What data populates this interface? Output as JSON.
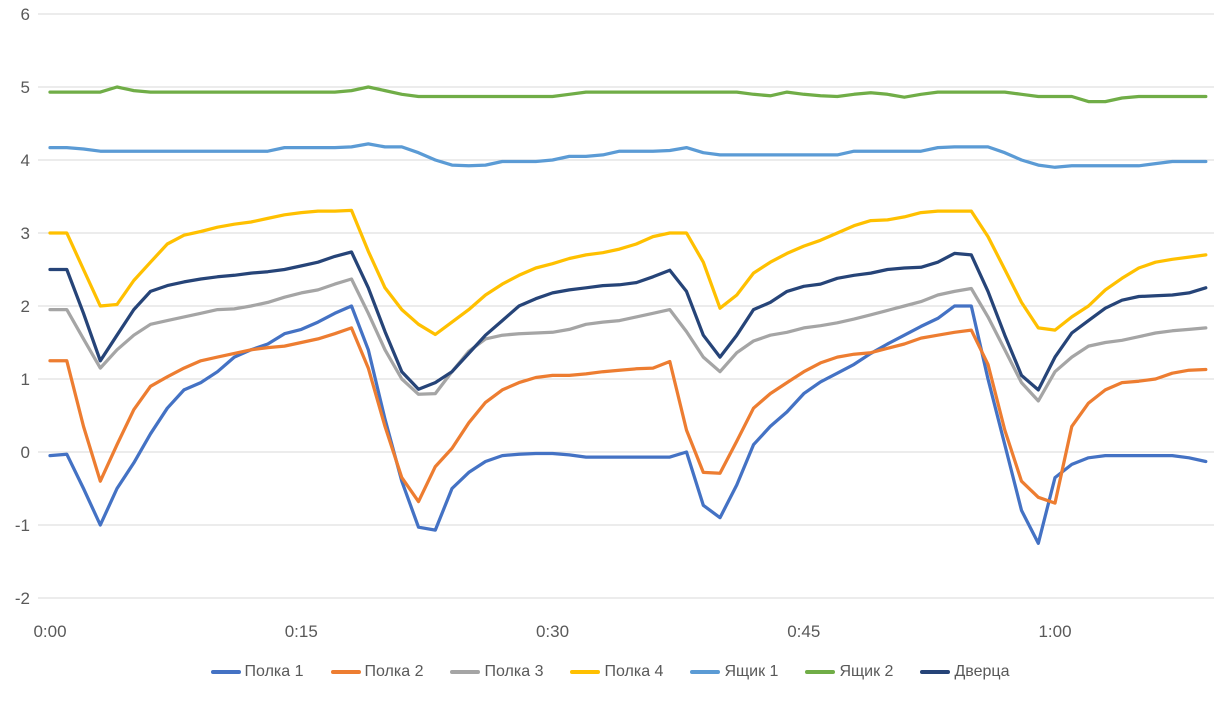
{
  "styles": {
    "background": "#FFFFFF",
    "gridline_color": "#D9D9D9",
    "axis_label_color": "#595959",
    "legend_label_color": "#595959"
  },
  "chart_data": {
    "type": "line",
    "title": "",
    "xlabel": "",
    "ylabel": "",
    "grid": true,
    "legend_position": "bottom",
    "x_axis": {
      "unit": "time_minutes",
      "start_min": 0,
      "end_min": 69,
      "sample_interval_min": 1,
      "ticks": [
        {
          "pos_min": 0,
          "label": "0:00"
        },
        {
          "pos_min": 15,
          "label": "0:15"
        },
        {
          "pos_min": 30,
          "label": "0:30"
        },
        {
          "pos_min": 45,
          "label": "0:45"
        },
        {
          "pos_min": 60,
          "label": "1:00"
        }
      ]
    },
    "y_axis": {
      "min": -2,
      "max": 6,
      "step": 1,
      "tick_labels": [
        "6",
        "5",
        "4",
        "3",
        "2",
        "1",
        "0",
        "-1",
        "-2"
      ]
    },
    "series": [
      {
        "name": "Полка 1",
        "key": "polka-1",
        "color": "#4472C4",
        "values": [
          -0.05,
          -0.03,
          -0.5,
          -1.0,
          -0.5,
          -0.15,
          0.25,
          0.6,
          0.85,
          0.95,
          1.1,
          1.3,
          1.4,
          1.48,
          1.62,
          1.68,
          1.78,
          1.9,
          2.0,
          1.4,
          0.45,
          -0.4,
          -1.03,
          -1.07,
          -0.5,
          -0.28,
          -0.13,
          -0.05,
          -0.03,
          -0.02,
          -0.02,
          -0.04,
          -0.07,
          -0.07,
          -0.07,
          -0.07,
          -0.07,
          -0.07,
          0.0,
          -0.73,
          -0.9,
          -0.45,
          0.1,
          0.35,
          0.55,
          0.8,
          0.96,
          1.08,
          1.2,
          1.35,
          1.48,
          1.6,
          1.72,
          1.83,
          2.0,
          2.0,
          1.0,
          0.1,
          -0.8,
          -1.25,
          -0.35,
          -0.17,
          -0.08,
          -0.05,
          -0.05,
          -0.05,
          -0.05,
          -0.05,
          -0.08,
          -0.13
        ]
      },
      {
        "name": "Полка 2",
        "key": "polka-2",
        "color": "#ED7D31",
        "values": [
          1.25,
          1.25,
          0.35,
          -0.4,
          0.1,
          0.58,
          0.9,
          1.03,
          1.15,
          1.25,
          1.3,
          1.35,
          1.4,
          1.43,
          1.45,
          1.5,
          1.55,
          1.62,
          1.7,
          1.15,
          0.35,
          -0.35,
          -0.68,
          -0.2,
          0.05,
          0.4,
          0.68,
          0.85,
          0.95,
          1.02,
          1.05,
          1.05,
          1.07,
          1.1,
          1.12,
          1.14,
          1.15,
          1.24,
          0.3,
          -0.28,
          -0.29,
          0.15,
          0.6,
          0.8,
          0.95,
          1.1,
          1.22,
          1.3,
          1.34,
          1.36,
          1.42,
          1.48,
          1.56,
          1.6,
          1.64,
          1.67,
          1.2,
          0.3,
          -0.4,
          -0.62,
          -0.7,
          0.35,
          0.67,
          0.85,
          0.95,
          0.97,
          1.0,
          1.08,
          1.12,
          1.13
        ]
      },
      {
        "name": "Полка 3",
        "key": "polka-3",
        "color": "#A5A5A5",
        "values": [
          1.95,
          1.95,
          1.55,
          1.15,
          1.4,
          1.6,
          1.75,
          1.8,
          1.85,
          1.9,
          1.95,
          1.96,
          2.0,
          2.05,
          2.12,
          2.18,
          2.22,
          2.3,
          2.37,
          1.9,
          1.4,
          1.0,
          0.79,
          0.8,
          1.1,
          1.38,
          1.55,
          1.6,
          1.62,
          1.63,
          1.64,
          1.68,
          1.75,
          1.78,
          1.8,
          1.85,
          1.9,
          1.95,
          1.65,
          1.3,
          1.1,
          1.36,
          1.52,
          1.6,
          1.64,
          1.7,
          1.73,
          1.77,
          1.82,
          1.88,
          1.94,
          2.0,
          2.06,
          2.15,
          2.2,
          2.24,
          1.85,
          1.4,
          0.95,
          0.7,
          1.1,
          1.3,
          1.45,
          1.5,
          1.53,
          1.58,
          1.63,
          1.66,
          1.68,
          1.7
        ]
      },
      {
        "name": "Полка 4",
        "key": "polka-4",
        "color": "#FFC000",
        "values": [
          3.0,
          3.0,
          2.5,
          2.0,
          2.02,
          2.35,
          2.6,
          2.85,
          2.97,
          3.02,
          3.08,
          3.12,
          3.15,
          3.2,
          3.25,
          3.28,
          3.3,
          3.3,
          3.31,
          2.75,
          2.25,
          1.95,
          1.75,
          1.61,
          1.78,
          1.95,
          2.15,
          2.3,
          2.42,
          2.52,
          2.58,
          2.65,
          2.7,
          2.73,
          2.78,
          2.85,
          2.95,
          3.0,
          3.0,
          2.6,
          1.97,
          2.15,
          2.45,
          2.6,
          2.72,
          2.82,
          2.9,
          3.0,
          3.1,
          3.17,
          3.18,
          3.22,
          3.28,
          3.3,
          3.3,
          3.3,
          2.95,
          2.5,
          2.05,
          1.7,
          1.67,
          1.85,
          2.0,
          2.22,
          2.38,
          2.52,
          2.6,
          2.64,
          2.67,
          2.7
        ]
      },
      {
        "name": "Ящик 1",
        "key": "yashchik-1",
        "color": "#5B9BD5",
        "values": [
          4.17,
          4.17,
          4.15,
          4.12,
          4.12,
          4.12,
          4.12,
          4.12,
          4.12,
          4.12,
          4.12,
          4.12,
          4.12,
          4.12,
          4.17,
          4.17,
          4.17,
          4.17,
          4.18,
          4.22,
          4.18,
          4.18,
          4.1,
          4.0,
          3.93,
          3.92,
          3.93,
          3.98,
          3.98,
          3.98,
          4.0,
          4.05,
          4.05,
          4.07,
          4.12,
          4.12,
          4.12,
          4.13,
          4.17,
          4.1,
          4.07,
          4.07,
          4.07,
          4.07,
          4.07,
          4.07,
          4.07,
          4.07,
          4.12,
          4.12,
          4.12,
          4.12,
          4.12,
          4.17,
          4.18,
          4.18,
          4.18,
          4.1,
          4.0,
          3.93,
          3.9,
          3.92,
          3.92,
          3.92,
          3.92,
          3.92,
          3.95,
          3.98,
          3.98,
          3.98
        ]
      },
      {
        "name": "Ящик 2",
        "key": "yashchik-2",
        "color": "#70AD47",
        "values": [
          4.93,
          4.93,
          4.93,
          4.93,
          5.0,
          4.95,
          4.93,
          4.93,
          4.93,
          4.93,
          4.93,
          4.93,
          4.93,
          4.93,
          4.93,
          4.93,
          4.93,
          4.93,
          4.95,
          5.0,
          4.95,
          4.9,
          4.87,
          4.87,
          4.87,
          4.87,
          4.87,
          4.87,
          4.87,
          4.87,
          4.87,
          4.9,
          4.93,
          4.93,
          4.93,
          4.93,
          4.93,
          4.93,
          4.93,
          4.93,
          4.93,
          4.93,
          4.9,
          4.88,
          4.93,
          4.9,
          4.88,
          4.87,
          4.9,
          4.92,
          4.9,
          4.86,
          4.9,
          4.93,
          4.93,
          4.93,
          4.93,
          4.93,
          4.9,
          4.87,
          4.87,
          4.87,
          4.8,
          4.8,
          4.85,
          4.87,
          4.87,
          4.87,
          4.87,
          4.87
        ]
      },
      {
        "name": "Дверца",
        "key": "dvertsa",
        "color": "#264478",
        "values": [
          2.5,
          2.5,
          1.9,
          1.25,
          1.6,
          1.95,
          2.2,
          2.28,
          2.33,
          2.37,
          2.4,
          2.42,
          2.45,
          2.47,
          2.5,
          2.55,
          2.6,
          2.68,
          2.74,
          2.25,
          1.65,
          1.1,
          0.86,
          0.95,
          1.1,
          1.35,
          1.6,
          1.8,
          2.0,
          2.1,
          2.18,
          2.22,
          2.25,
          2.28,
          2.29,
          2.32,
          2.4,
          2.49,
          2.2,
          1.6,
          1.3,
          1.6,
          1.95,
          2.05,
          2.2,
          2.27,
          2.3,
          2.38,
          2.42,
          2.45,
          2.5,
          2.52,
          2.53,
          2.6,
          2.72,
          2.7,
          2.2,
          1.6,
          1.05,
          0.85,
          1.3,
          1.63,
          1.8,
          1.97,
          2.08,
          2.13,
          2.14,
          2.15,
          2.18,
          2.25
        ]
      }
    ]
  }
}
